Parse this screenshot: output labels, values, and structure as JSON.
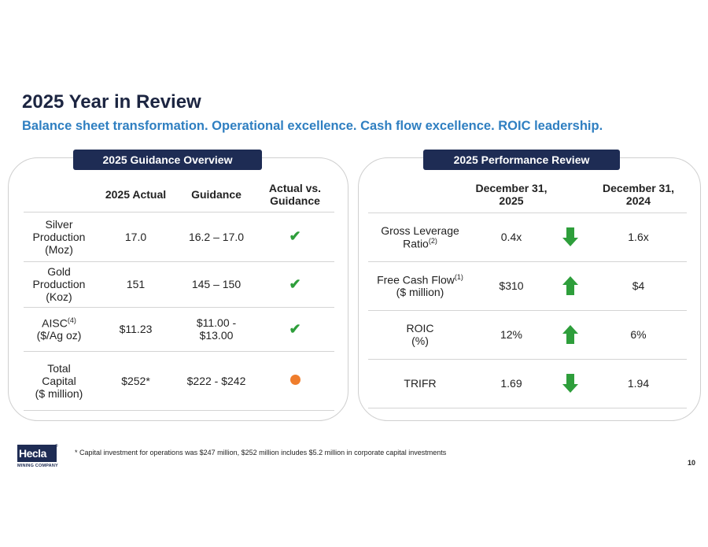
{
  "title": "2025 Year in Review",
  "subtitle": "Balance sheet transformation. Operational excellence. Cash flow excellence. ROIC leadership.",
  "guidance": {
    "tag": "2025 Guidance Overview",
    "headers": {
      "actual": "2025 Actual",
      "guidance": "Guidance",
      "vs_line1": "Actual vs.",
      "vs_line2": "Guidance"
    },
    "rows": [
      {
        "label_lines": [
          "Silver",
          "Production",
          "(Moz)"
        ],
        "actual": "17.0",
        "guidance": "16.2 – 17.0",
        "status": "check",
        "status_glyph": "✔"
      },
      {
        "label_lines": [
          "Gold",
          "Production",
          "(Koz)"
        ],
        "actual": "151",
        "guidance": "145 – 150",
        "status": "check",
        "status_glyph": "✔"
      },
      {
        "label_line1": "AISC",
        "label_sup": "(4)",
        "label_line2": "($/Ag oz)",
        "actual": "$11.23",
        "guidance_line1": "$11.00 -",
        "guidance_line2": "$13.00",
        "status": "check",
        "status_glyph": "✔"
      },
      {
        "label_lines": [
          "Total",
          "Capital",
          "($ million)"
        ],
        "actual": "$252*",
        "guidance": "$222 - $242",
        "status": "dot",
        "status_color": "#ef7d2c"
      }
    ]
  },
  "performance": {
    "tag": "2025 Performance Review",
    "headers": {
      "col1_line1": "December 31,",
      "col1_line2": "2025",
      "col2_line1": "December 31,",
      "col2_line2": "2024"
    },
    "rows": [
      {
        "label_line1": "Gross Leverage",
        "label_line2": "Ratio",
        "label_sup": "(2)",
        "v2025": "0.4x",
        "trend": "down",
        "v2024": "1.6x"
      },
      {
        "label_line1": "Free Cash Flow",
        "label_sup": "(1)",
        "label_line2": "($ million)",
        "v2025": "$310",
        "trend": "up",
        "v2024": "$4"
      },
      {
        "label_line1": "ROIC",
        "label_line2": "(%)",
        "v2025": "12%",
        "trend": "up",
        "v2024": "6%"
      },
      {
        "label_line1": "TRIFR",
        "v2025": "1.69",
        "trend": "down",
        "v2024": "1.94"
      }
    ],
    "arrow_color": "#2e9e3b"
  },
  "footnote": "* Capital investment for operations was $247 million, $252 million includes $5.2 million in corporate capital investments",
  "page_number": "10",
  "logo": {
    "name": "Hecla",
    "sub": "MINING COMPANY",
    "reg": "®"
  }
}
